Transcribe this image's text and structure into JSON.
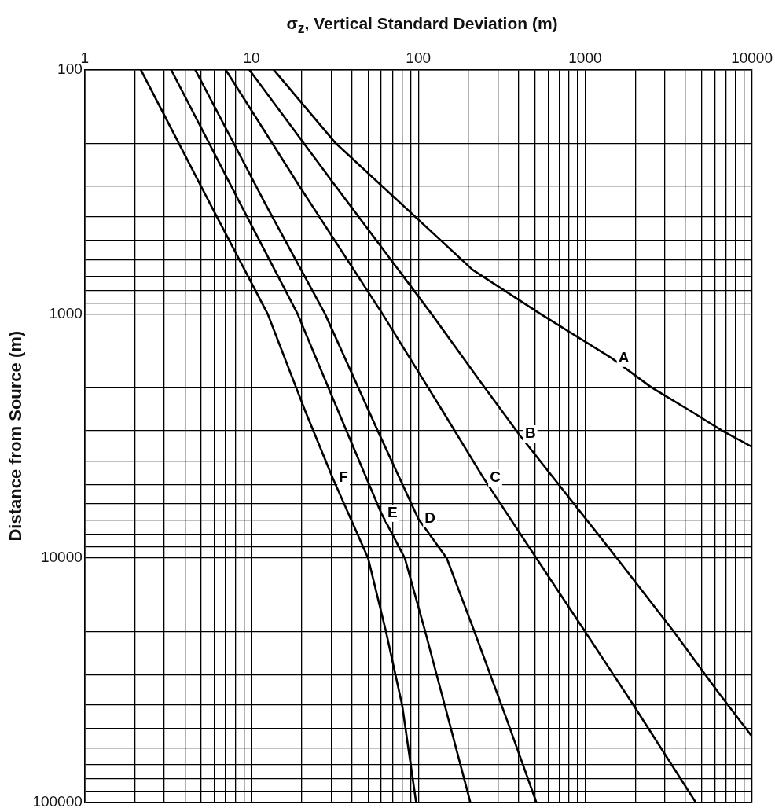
{
  "chart_data": {
    "type": "line",
    "xlabel": "σ$_{z}$, Vertical Standard Deviation (m)",
    "ylabel": "Distance from Source (m)",
    "log": "xy",
    "grid": true,
    "legend": false,
    "marker": "none",
    "line_style": "solid",
    "xlim": [
      1,
      10000
    ],
    "ylim": [
      100000,
      100
    ],
    "xticks": [
      1,
      {
        "value": 2,
        "label": null
      },
      {
        "value": 3,
        "label": null
      },
      {
        "value": 4,
        "label": null
      },
      {
        "value": 5,
        "label": null
      },
      {
        "value": 6,
        "label": null
      },
      {
        "value": 7,
        "label": null
      },
      {
        "value": 8,
        "label": null
      },
      {
        "value": 9,
        "label": null
      },
      10,
      {
        "value": 20,
        "label": null
      },
      {
        "value": 30,
        "label": null
      },
      {
        "value": 40,
        "label": null
      },
      {
        "value": 50,
        "label": null
      },
      {
        "value": 60,
        "label": null
      },
      {
        "value": 70,
        "label": null
      },
      {
        "value": 80,
        "label": null
      },
      {
        "value": 90,
        "label": null
      },
      100,
      {
        "value": 200,
        "label": null
      },
      {
        "value": 300,
        "label": null
      },
      {
        "value": 400,
        "label": null
      },
      {
        "value": 500,
        "label": null
      },
      {
        "value": 600,
        "label": null
      },
      {
        "value": 700,
        "label": null
      },
      {
        "value": 800,
        "label": null
      },
      {
        "value": 900,
        "label": null
      },
      1000,
      {
        "value": 2000,
        "label": null
      },
      {
        "value": 3000,
        "label": null
      },
      {
        "value": 4000,
        "label": null
      },
      {
        "value": 5000,
        "label": null
      },
      {
        "value": 6000,
        "label": null
      },
      {
        "value": 7000,
        "label": null
      },
      {
        "value": 8000,
        "label": null
      },
      {
        "value": 9000,
        "label": null
      },
      10000
    ],
    "yticks": [
      100,
      {
        "value": 200,
        "label": null
      },
      {
        "value": 300,
        "label": null
      },
      {
        "value": 400,
        "label": null
      },
      {
        "value": 500,
        "label": null
      },
      {
        "value": 600,
        "label": null
      },
      {
        "value": 700,
        "label": null
      },
      {
        "value": 800,
        "label": null
      },
      {
        "value": 900,
        "label": null
      },
      1000,
      {
        "value": 2000,
        "label": null
      },
      {
        "value": 3000,
        "label": null
      },
      {
        "value": 4000,
        "label": null
      },
      {
        "value": 5000,
        "label": null
      },
      {
        "value": 6000,
        "label": null
      },
      {
        "value": 7000,
        "label": null
      },
      {
        "value": 8000,
        "label": null
      },
      {
        "value": 9000,
        "label": null
      },
      10000,
      {
        "value": 20000,
        "label": null
      },
      {
        "value": 30000,
        "label": null
      },
      {
        "value": 40000,
        "label": null
      },
      {
        "value": 50000,
        "label": null
      },
      {
        "value": 60000,
        "label": null
      },
      {
        "value": 70000,
        "label": null
      },
      {
        "value": 80000,
        "label": null
      },
      {
        "value": 90000,
        "label": null
      },
      100000
    ],
    "series": [
      {
        "name": "A",
        "color": "#000000",
        "x": [
          13.6,
          32,
          212,
          540,
          1450,
          2500,
          4300,
          6600,
          10000
        ],
        "values": [
          100,
          200,
          660,
          1000,
          1520,
          2000,
          2500,
          3000,
          3500
        ]
      },
      {
        "name": "B",
        "color": "#000000",
        "x": [
          9.7,
          32,
          120,
          250,
          400,
          1550,
          3400,
          6200,
          10000
        ],
        "values": [
          100,
          300,
          1000,
          2000,
          3100,
          10000,
          20000,
          35000,
          53700
        ]
      },
      {
        "name": "C",
        "color": "#000000",
        "x": [
          7.0,
          19.4,
          61,
          140,
          246,
          510,
          1000,
          1950,
          4600
        ],
        "values": [
          100,
          300,
          1000,
          2500,
          4700,
          10000,
          20000,
          40000,
          100000
        ]
      },
      {
        "name": "D",
        "color": "#000000",
        "x": [
          4.6,
          12,
          27.6,
          57,
          100,
          148,
          217,
          336,
          510
        ],
        "values": [
          100,
          350,
          1000,
          3000,
          6900,
          10000,
          20000,
          45000,
          100000
        ]
      },
      {
        "name": "E",
        "color": "#000000",
        "x": [
          3.3,
          8.5,
          18.9,
          37,
          60,
          83,
          110,
          144,
          205
        ],
        "values": [
          100,
          350,
          1000,
          3000,
          6550,
          10000,
          20000,
          40000,
          100000
        ]
      },
      {
        "name": "F",
        "color": "#000000",
        "x": [
          2.17,
          5.6,
          12.5,
          21,
          30.7,
          50,
          64,
          80,
          97
        ],
        "values": [
          100,
          350,
          1000,
          2500,
          4700,
          10000,
          20000,
          40000,
          100000
        ]
      }
    ]
  }
}
